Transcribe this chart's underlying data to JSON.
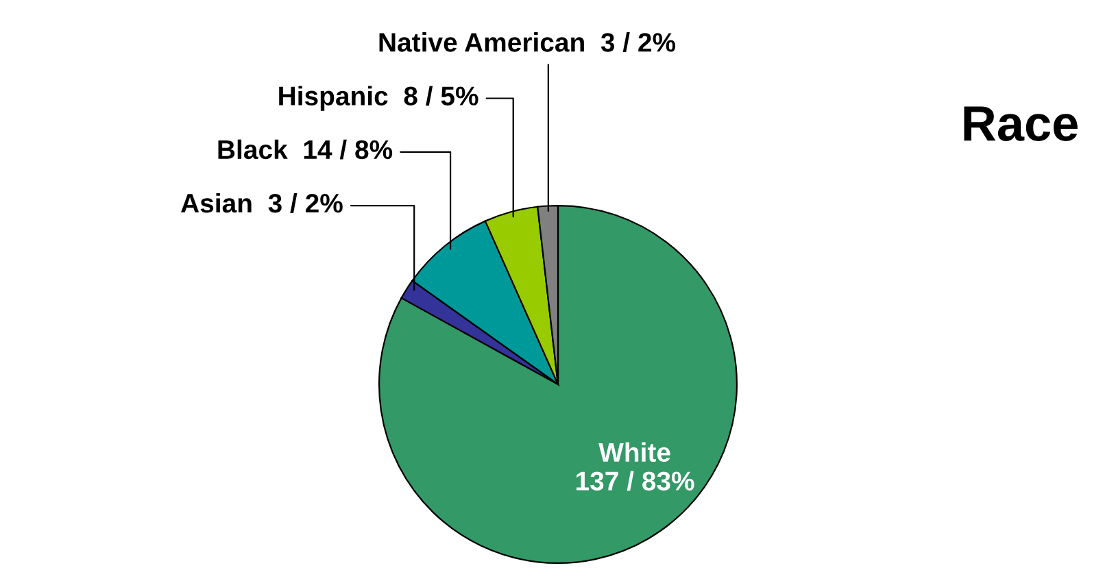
{
  "chart_data": {
    "type": "pie",
    "title": "Race",
    "categories": [
      "White",
      "Asian",
      "Black",
      "Hispanic",
      "Native American"
    ],
    "values": [
      137,
      3,
      14,
      8,
      3
    ],
    "value_labels": [
      "137 / 83%",
      "3 / 2%",
      "14 / 8%",
      "8 / 5%",
      "3 / 2%"
    ],
    "colors": [
      "#339966",
      "#333399",
      "#009999",
      "#99cc00",
      "#808080"
    ],
    "legend": false
  }
}
